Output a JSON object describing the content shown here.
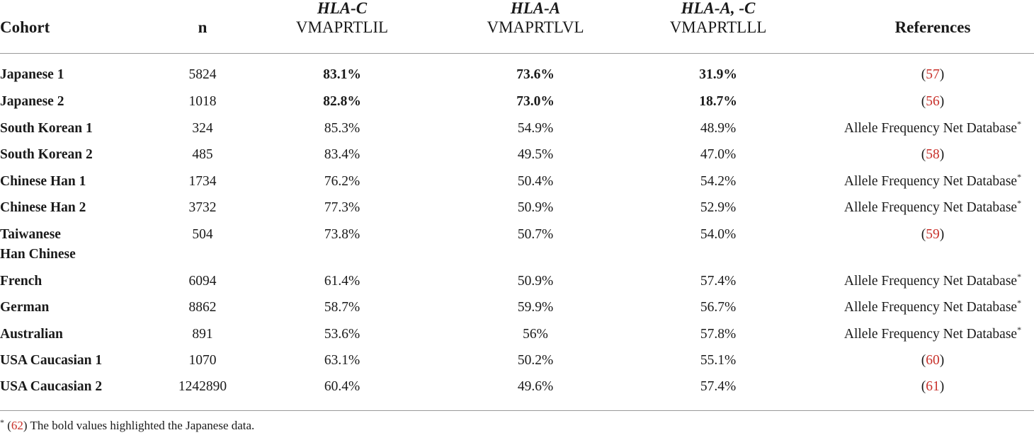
{
  "header": {
    "cohort": "Cohort",
    "n": "n",
    "hla_c_gene": "HLA-C",
    "hla_c_seq": "VMAPRTLIL",
    "hla_a_gene": "HLA-A",
    "hla_a_seq": "VMAPRTLVL",
    "hla_ac_gene": "HLA-A, -C",
    "hla_ac_seq": "VMAPRTLLL",
    "references": "References"
  },
  "rows": [
    {
      "cohort": "Japanese 1",
      "n": "5824",
      "hla_c": "83.1%",
      "hla_a": "73.6%",
      "hla_ac": "31.9%",
      "ref_open": "(",
      "ref_cite": "57",
      "ref_close": ")",
      "ref_text": "",
      "ref_star": "",
      "bold": true
    },
    {
      "cohort": "Japanese 2",
      "n": "1018",
      "hla_c": "82.8%",
      "hla_a": "73.0%",
      "hla_ac": "18.7%",
      "ref_open": "(",
      "ref_cite": "56",
      "ref_close": ")",
      "ref_text": "",
      "ref_star": "",
      "bold": true
    },
    {
      "cohort": "South Korean 1",
      "n": "324",
      "hla_c": "85.3%",
      "hla_a": "54.9%",
      "hla_ac": "48.9%",
      "ref_open": "",
      "ref_cite": "",
      "ref_close": "",
      "ref_text": "Allele Frequency Net Database",
      "ref_star": "*",
      "bold": false
    },
    {
      "cohort": "South Korean 2",
      "n": "485",
      "hla_c": "83.4%",
      "hla_a": "49.5%",
      "hla_ac": "47.0%",
      "ref_open": "(",
      "ref_cite": "58",
      "ref_close": ")",
      "ref_text": "",
      "ref_star": "",
      "bold": false
    },
    {
      "cohort": "Chinese Han 1",
      "n": "1734",
      "hla_c": "76.2%",
      "hla_a": "50.4%",
      "hla_ac": "54.2%",
      "ref_open": "",
      "ref_cite": "",
      "ref_close": "",
      "ref_text": "Allele Frequency Net Database",
      "ref_star": "*",
      "bold": false
    },
    {
      "cohort": "Chinese Han 2",
      "n": "3732",
      "hla_c": "77.3%",
      "hla_a": "50.9%",
      "hla_ac": "52.9%",
      "ref_open": "",
      "ref_cite": "",
      "ref_close": "",
      "ref_text": "Allele Frequency Net Database",
      "ref_star": "*",
      "bold": false
    },
    {
      "cohort": "Taiwanese",
      "cohort2": "Han Chinese",
      "n": "504",
      "hla_c": "73.8%",
      "hla_a": "50.7%",
      "hla_ac": "54.0%",
      "ref_open": "(",
      "ref_cite": "59",
      "ref_close": ")",
      "ref_text": "",
      "ref_star": "",
      "bold": false
    },
    {
      "cohort": "French",
      "n": "6094",
      "hla_c": "61.4%",
      "hla_a": "50.9%",
      "hla_ac": "57.4%",
      "ref_open": "",
      "ref_cite": "",
      "ref_close": "",
      "ref_text": "Allele Frequency Net Database",
      "ref_star": "*",
      "bold": false
    },
    {
      "cohort": "German",
      "n": "8862",
      "hla_c": "58.7%",
      "hla_a": "59.9%",
      "hla_ac": "56.7%",
      "ref_open": "",
      "ref_cite": "",
      "ref_close": "",
      "ref_text": "Allele Frequency Net Database",
      "ref_star": "*",
      "bold": false
    },
    {
      "cohort": "Australian",
      "n": "891",
      "hla_c": "53.6%",
      "hla_a": "56%",
      "hla_ac": "57.8%",
      "ref_open": "",
      "ref_cite": "",
      "ref_close": "",
      "ref_text": "Allele Frequency Net Database",
      "ref_star": "*",
      "bold": false
    },
    {
      "cohort": "USA Caucasian 1",
      "n": "1070",
      "hla_c": "63.1%",
      "hla_a": "50.2%",
      "hla_ac": "55.1%",
      "ref_open": "(",
      "ref_cite": "60",
      "ref_close": ")",
      "ref_text": "",
      "ref_star": "",
      "bold": false
    },
    {
      "cohort": "USA Caucasian 2",
      "n": "1242890",
      "hla_c": "60.4%",
      "hla_a": "49.6%",
      "hla_ac": "57.4%",
      "ref_open": "(",
      "ref_cite": "61",
      "ref_close": ")",
      "ref_text": "",
      "ref_star": "",
      "bold": false
    }
  ],
  "footnote": {
    "star": "*",
    "open": "(",
    "cite": "62",
    "close": ")",
    "text": " The bold values highlighted the Japanese data."
  },
  "colors": {
    "citation": "#c8302a",
    "rule": "#9a9a9a",
    "text": "#1a1a1a"
  }
}
